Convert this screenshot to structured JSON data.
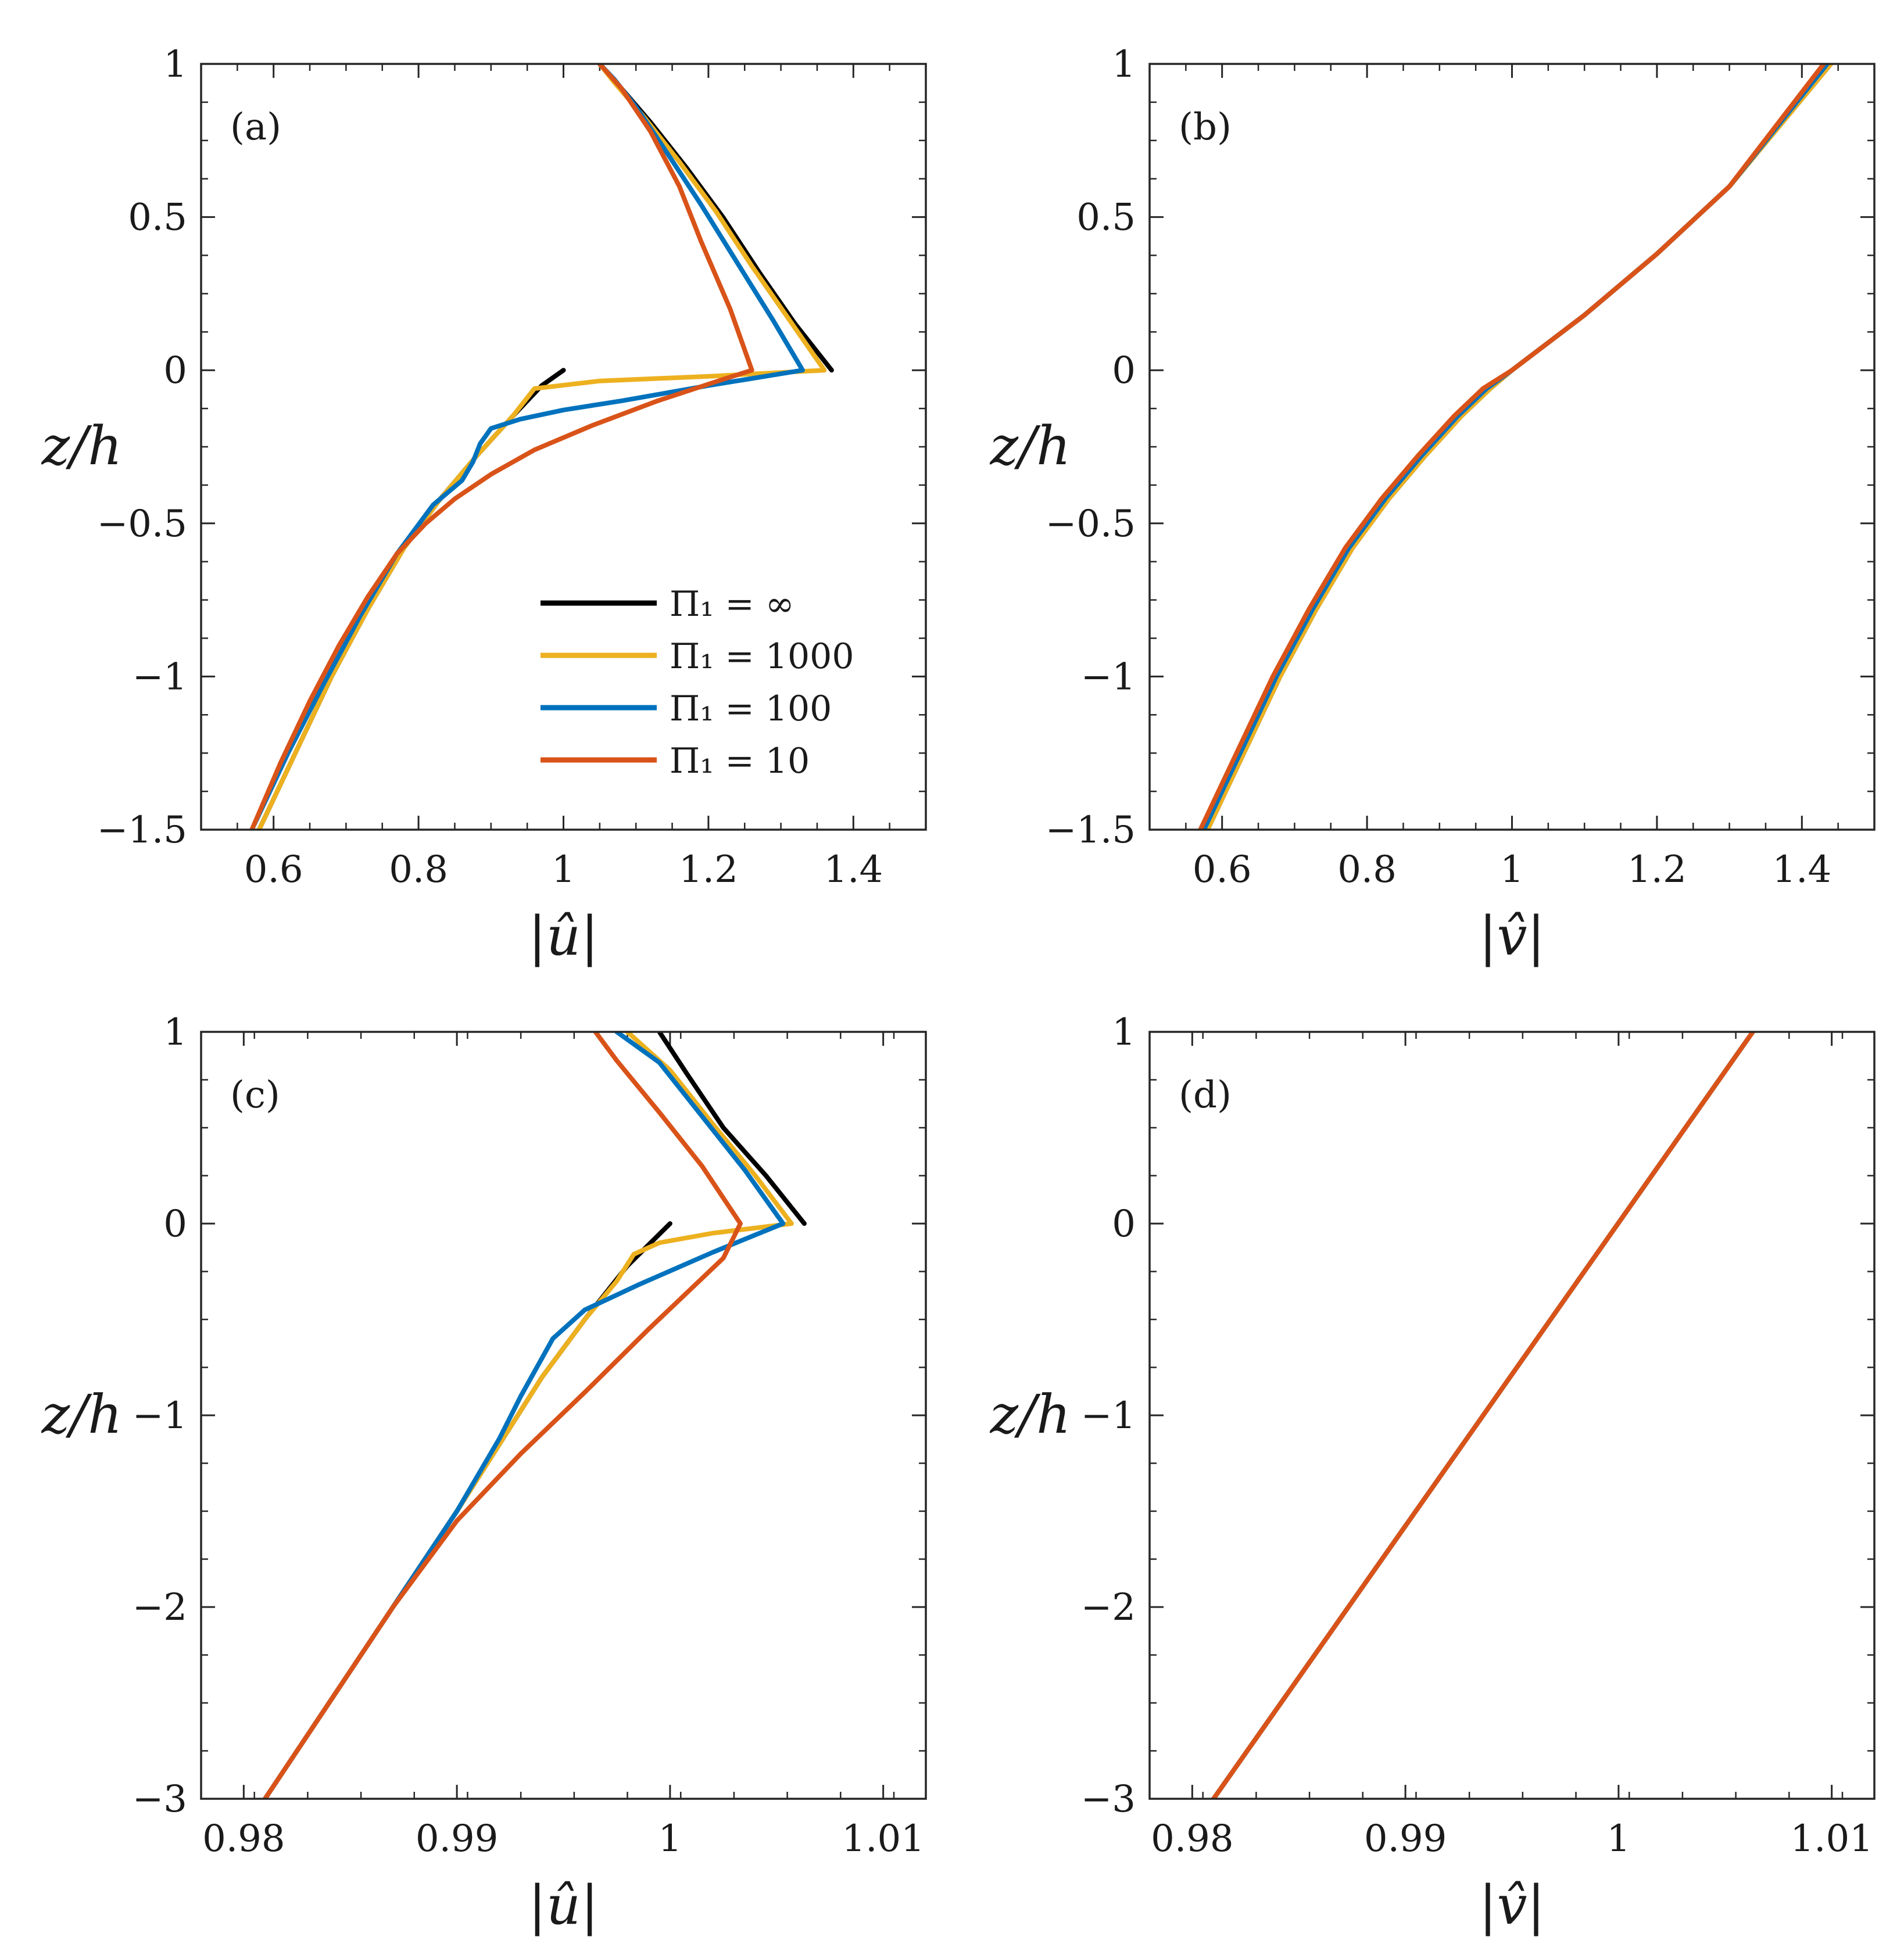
{
  "colors": {
    "inf": "#000000",
    "p1000": "#EDB120",
    "p100": "#0072BD",
    "p10": "#D95319",
    "axis": "#262626"
  },
  "legend": [
    {
      "key": "inf",
      "label": "Π₁ = ∞"
    },
    {
      "key": "p1000",
      "label": "Π₁ = 1000"
    },
    {
      "key": "p100",
      "label": "Π₁ = 100"
    },
    {
      "key": "p10",
      "label": "Π₁ = 10"
    }
  ],
  "chart_data": [
    {
      "id": "a",
      "panel_label": "(a)",
      "type": "line",
      "xlabel": "|û|",
      "ylabel": "z/h",
      "xlim": [
        0.5,
        1.5
      ],
      "ylim": [
        -1.5,
        1
      ],
      "xticks": [
        0.6,
        0.8,
        1,
        1.2,
        1.4
      ],
      "xtick_labels": [
        "0.6",
        "0.8",
        "1",
        "1.2",
        "1.4"
      ],
      "yticks": [
        -1.5,
        -1,
        -0.5,
        0,
        0.5,
        1
      ],
      "ytick_labels": [
        "−1.5",
        "−1",
        "−0.5",
        "0",
        "0.5",
        "1"
      ],
      "legend_position": "center-right",
      "series": [
        {
          "key": "inf",
          "x": [
            0.58,
            0.63,
            0.68,
            0.73,
            0.78,
            0.83,
            0.88,
            0.93,
            0.97,
            1.0
          ],
          "y": [
            -1.5,
            -1.25,
            -1.0,
            -0.78,
            -0.58,
            -0.42,
            -0.28,
            -0.15,
            -0.05,
            0.0
          ]
        },
        {
          "key": "inf",
          "x": [
            1.37,
            1.32,
            1.27,
            1.22,
            1.17,
            1.12,
            1.08,
            1.05
          ],
          "y": [
            0.0,
            0.15,
            0.32,
            0.5,
            0.66,
            0.81,
            0.92,
            1.0
          ]
        },
        {
          "key": "p1000",
          "x": [
            0.58,
            0.63,
            0.68,
            0.73,
            0.78,
            0.83,
            0.88,
            0.93,
            0.95,
            0.96,
            1.05,
            1.2,
            1.36,
            1.31,
            1.26,
            1.21,
            1.16,
            1.11,
            1.07,
            1.05
          ],
          "y": [
            -1.5,
            -1.25,
            -1.0,
            -0.78,
            -0.58,
            -0.42,
            -0.28,
            -0.15,
            -0.09,
            -0.06,
            -0.035,
            -0.02,
            0.0,
            0.17,
            0.34,
            0.52,
            0.68,
            0.83,
            0.94,
            1.0
          ]
        },
        {
          "key": "p100",
          "x": [
            0.57,
            0.62,
            0.67,
            0.72,
            0.77,
            0.82,
            0.86,
            0.875,
            0.885,
            0.9,
            0.94,
            1.0,
            1.08,
            1.2,
            1.33,
            1.29,
            1.24,
            1.19,
            1.14,
            1.1,
            1.07,
            1.05
          ],
          "y": [
            -1.5,
            -1.25,
            -1.02,
            -0.8,
            -0.6,
            -0.44,
            -0.36,
            -0.3,
            -0.24,
            -0.19,
            -0.16,
            -0.13,
            -0.1,
            -0.05,
            0.0,
            0.16,
            0.35,
            0.54,
            0.72,
            0.86,
            0.95,
            1.0
          ]
        },
        {
          "key": "p10",
          "x": [
            0.57,
            0.61,
            0.65,
            0.69,
            0.73,
            0.77,
            0.81,
            0.85,
            0.9,
            0.96,
            1.04,
            1.13,
            1.22,
            1.26,
            1.23,
            1.19,
            1.16,
            1.12,
            1.08,
            1.05
          ],
          "y": [
            -1.5,
            -1.28,
            -1.08,
            -0.9,
            -0.74,
            -0.6,
            -0.5,
            -0.42,
            -0.34,
            -0.26,
            -0.18,
            -0.1,
            -0.03,
            0.0,
            0.2,
            0.42,
            0.6,
            0.78,
            0.92,
            1.0
          ]
        }
      ]
    },
    {
      "id": "b",
      "panel_label": "(b)",
      "type": "line",
      "xlabel": "|v̂|",
      "ylabel": "z/h",
      "xlim": [
        0.5,
        1.5
      ],
      "ylim": [
        -1.5,
        1
      ],
      "xticks": [
        0.6,
        0.8,
        1,
        1.2,
        1.4
      ],
      "xtick_labels": [
        "0.6",
        "0.8",
        "1",
        "1.2",
        "1.4"
      ],
      "yticks": [
        -1.5,
        -1,
        -0.5,
        0,
        0.5,
        1
      ],
      "ytick_labels": [
        "−1.5",
        "−1",
        "−0.5",
        "0",
        "0.5",
        "1"
      ],
      "series": [
        {
          "key": "inf",
          "x": [
            0.58,
            0.63,
            0.68,
            0.73,
            0.78,
            0.83,
            0.88,
            0.93,
            0.97,
            1.0,
            1.1,
            1.2,
            1.3,
            1.44
          ],
          "y": [
            -1.5,
            -1.25,
            -1.0,
            -0.78,
            -0.58,
            -0.42,
            -0.28,
            -0.15,
            -0.06,
            0.0,
            0.18,
            0.38,
            0.6,
            1.0
          ]
        },
        {
          "key": "p1000",
          "x": [
            0.58,
            0.63,
            0.68,
            0.73,
            0.78,
            0.83,
            0.88,
            0.93,
            0.97,
            1.0,
            1.1,
            1.2,
            1.3,
            1.44
          ],
          "y": [
            -1.5,
            -1.25,
            -1.0,
            -0.78,
            -0.58,
            -0.42,
            -0.28,
            -0.15,
            -0.06,
            0.0,
            0.18,
            0.38,
            0.6,
            1.0
          ]
        },
        {
          "key": "p100",
          "x": [
            0.575,
            0.625,
            0.675,
            0.725,
            0.775,
            0.825,
            0.875,
            0.925,
            0.965,
            1.0,
            1.1,
            1.2,
            1.3,
            1.435
          ],
          "y": [
            -1.5,
            -1.25,
            -1.0,
            -0.78,
            -0.58,
            -0.42,
            -0.28,
            -0.15,
            -0.06,
            0.0,
            0.18,
            0.38,
            0.6,
            1.0
          ]
        },
        {
          "key": "p10",
          "x": [
            0.57,
            0.62,
            0.67,
            0.72,
            0.77,
            0.82,
            0.87,
            0.92,
            0.96,
            1.0,
            1.1,
            1.2,
            1.3,
            1.43
          ],
          "y": [
            -1.5,
            -1.25,
            -1.0,
            -0.78,
            -0.58,
            -0.42,
            -0.28,
            -0.15,
            -0.06,
            0.0,
            0.18,
            0.38,
            0.6,
            1.0
          ]
        }
      ]
    },
    {
      "id": "c",
      "panel_label": "(c)",
      "type": "line",
      "xlabel": "|û|",
      "ylabel": "z/h",
      "xlim": [
        0.978,
        1.012
      ],
      "ylim": [
        -3,
        1
      ],
      "xticks": [
        0.98,
        0.99,
        1,
        1.01
      ],
      "xtick_labels": [
        "0.98",
        "0.99",
        "1",
        "1.01"
      ],
      "yticks": [
        -3,
        -2,
        -1,
        0,
        1
      ],
      "ytick_labels": [
        "−3",
        "−2",
        "−1",
        "0",
        "1"
      ],
      "series": [
        {
          "key": "inf",
          "x": [
            0.981,
            0.984,
            0.987,
            0.99,
            0.992,
            0.994,
            0.996,
            0.998,
            1.0
          ],
          "y": [
            -3.0,
            -2.5,
            -2.0,
            -1.5,
            -1.15,
            -0.8,
            -0.5,
            -0.22,
            0.0
          ]
        },
        {
          "key": "inf",
          "x": [
            1.0063,
            1.0045,
            1.0025,
            1.0008,
            0.9995
          ],
          "y": [
            0.0,
            0.25,
            0.5,
            0.78,
            1.0
          ]
        },
        {
          "key": "p1000",
          "x": [
            0.981,
            0.984,
            0.987,
            0.99,
            0.992,
            0.994,
            0.996,
            0.9975,
            0.9983,
            0.9995,
            1.002,
            1.0057,
            1.004,
            1.002,
            1.0,
            0.998
          ],
          "y": [
            -3.0,
            -2.5,
            -2.0,
            -1.5,
            -1.15,
            -0.8,
            -0.5,
            -0.3,
            -0.16,
            -0.1,
            -0.05,
            0.0,
            0.25,
            0.52,
            0.8,
            1.0
          ]
        },
        {
          "key": "p100",
          "x": [
            0.981,
            0.984,
            0.987,
            0.99,
            0.992,
            0.993,
            0.9945,
            0.996,
            0.9985,
            1.002,
            1.0053,
            1.0035,
            1.0015,
            0.9995,
            0.9975
          ],
          "y": [
            -3.0,
            -2.5,
            -2.0,
            -1.5,
            -1.12,
            -0.9,
            -0.6,
            -0.45,
            -0.32,
            -0.15,
            0.0,
            0.28,
            0.56,
            0.84,
            1.0
          ]
        },
        {
          "key": "p10",
          "x": [
            0.981,
            0.984,
            0.987,
            0.99,
            0.993,
            0.996,
            0.999,
            1.0025,
            1.0033,
            1.0015,
            0.9995,
            0.9975,
            0.9965
          ],
          "y": [
            -3.0,
            -2.5,
            -2.0,
            -1.55,
            -1.2,
            -0.88,
            -0.55,
            -0.18,
            0.0,
            0.3,
            0.58,
            0.85,
            1.0
          ]
        }
      ]
    },
    {
      "id": "d",
      "panel_label": "(d)",
      "type": "line",
      "xlabel": "|v̂|",
      "ylabel": "z/h",
      "xlim": [
        0.978,
        1.012
      ],
      "ylim": [
        -3,
        1
      ],
      "xticks": [
        0.98,
        0.99,
        1,
        1.01
      ],
      "xtick_labels": [
        "0.98",
        "0.99",
        "1",
        "1.01"
      ],
      "yticks": [
        -3,
        -2,
        -1,
        0,
        1
      ],
      "ytick_labels": [
        "−3",
        "−2",
        "−1",
        "0",
        "1"
      ],
      "series": [
        {
          "key": "inf",
          "x": [
            0.981,
            1.0063
          ],
          "y": [
            -3.0,
            1.0
          ]
        },
        {
          "key": "p1000",
          "x": [
            0.981,
            1.0063
          ],
          "y": [
            -3.0,
            1.0
          ]
        },
        {
          "key": "p100",
          "x": [
            0.981,
            1.0063
          ],
          "y": [
            -3.0,
            1.0
          ]
        },
        {
          "key": "p10",
          "x": [
            0.981,
            1.0063
          ],
          "y": [
            -3.0,
            1.0
          ]
        }
      ]
    }
  ]
}
